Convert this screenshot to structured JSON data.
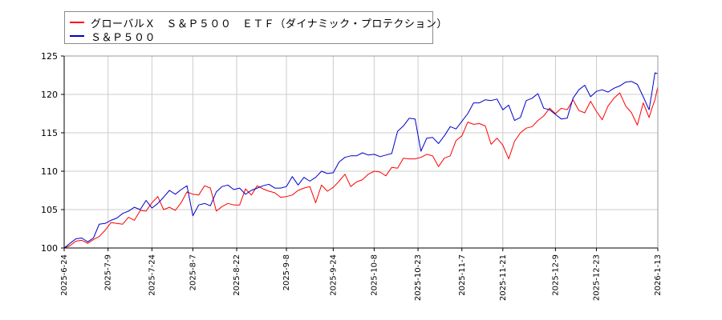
{
  "chart_data": {
    "type": "line",
    "title": "",
    "xlabel": "",
    "ylabel": "",
    "ylim": [
      100,
      125
    ],
    "yticks": [
      100,
      105,
      110,
      115,
      120,
      125
    ],
    "xlim": [
      "2025-06-24",
      "2026-01-13"
    ],
    "xtick_labels": [
      "2025-6-24",
      "2025-7-9",
      "2025-7-24",
      "2025-8-7",
      "2025-8-22",
      "2025-9-8",
      "2025-9-24",
      "2025-10-8",
      "2025-10-23",
      "2025-11-7",
      "2025-11-21",
      "2025-12-9",
      "2025-12-23",
      "2026-1-13"
    ],
    "grid": true,
    "legend_placement": "top-left",
    "colors": {
      "etf": "#ff0000",
      "index": "#0000cc",
      "grid": "#cccccc",
      "axis": "#000000"
    },
    "series": [
      {
        "name": "グローバルＸ　Ｓ＆Ｐ５００　ＥＴＦ（ダイナミック・プロテクション）",
        "color": "#ff0000",
        "points": [
          [
            "2025-06-24",
            100.0
          ],
          [
            "2025-06-26",
            100.3
          ],
          [
            "2025-06-28",
            100.9
          ],
          [
            "2025-06-30",
            101.0
          ],
          [
            "2025-07-02",
            100.6
          ],
          [
            "2025-07-04",
            101.1
          ],
          [
            "2025-07-06",
            101.5
          ],
          [
            "2025-07-08",
            102.3
          ],
          [
            "2025-07-10",
            103.3
          ],
          [
            "2025-07-12",
            103.2
          ],
          [
            "2025-07-14",
            103.1
          ],
          [
            "2025-07-16",
            104.0
          ],
          [
            "2025-07-18",
            103.6
          ],
          [
            "2025-07-20",
            104.9
          ],
          [
            "2025-07-22",
            104.8
          ],
          [
            "2025-07-24",
            105.9
          ],
          [
            "2025-07-26",
            106.7
          ],
          [
            "2025-07-28",
            105.0
          ],
          [
            "2025-07-30",
            105.3
          ],
          [
            "2025-08-01",
            104.9
          ],
          [
            "2025-08-03",
            105.9
          ],
          [
            "2025-08-05",
            107.3
          ],
          [
            "2025-08-07",
            107.0
          ],
          [
            "2025-08-09",
            106.9
          ],
          [
            "2025-08-11",
            108.1
          ],
          [
            "2025-08-13",
            107.8
          ],
          [
            "2025-08-15",
            104.8
          ],
          [
            "2025-08-17",
            105.4
          ],
          [
            "2025-08-19",
            105.8
          ],
          [
            "2025-08-21",
            105.6
          ],
          [
            "2025-08-23",
            105.6
          ],
          [
            "2025-08-25",
            107.7
          ],
          [
            "2025-08-27",
            106.9
          ],
          [
            "2025-08-29",
            108.1
          ],
          [
            "2025-08-31",
            107.7
          ],
          [
            "2025-09-02",
            107.4
          ],
          [
            "2025-09-04",
            107.2
          ],
          [
            "2025-09-06",
            106.6
          ],
          [
            "2025-09-08",
            106.7
          ],
          [
            "2025-09-10",
            106.9
          ],
          [
            "2025-09-12",
            107.5
          ],
          [
            "2025-09-14",
            107.8
          ],
          [
            "2025-09-16",
            108.0
          ],
          [
            "2025-09-18",
            105.9
          ],
          [
            "2025-09-20",
            108.2
          ],
          [
            "2025-09-22",
            107.4
          ],
          [
            "2025-09-24",
            107.9
          ],
          [
            "2025-09-26",
            108.7
          ],
          [
            "2025-09-28",
            109.6
          ],
          [
            "2025-09-30",
            108.0
          ],
          [
            "2025-10-02",
            108.6
          ],
          [
            "2025-10-04",
            108.9
          ],
          [
            "2025-10-06",
            109.6
          ],
          [
            "2025-10-08",
            110.0
          ],
          [
            "2025-10-10",
            109.9
          ],
          [
            "2025-10-12",
            109.4
          ],
          [
            "2025-10-14",
            110.5
          ],
          [
            "2025-10-16",
            110.4
          ],
          [
            "2025-10-18",
            111.7
          ],
          [
            "2025-10-20",
            111.6
          ],
          [
            "2025-10-22",
            111.6
          ],
          [
            "2025-10-24",
            111.8
          ],
          [
            "2025-10-26",
            112.2
          ],
          [
            "2025-10-28",
            112.0
          ],
          [
            "2025-10-30",
            110.6
          ],
          [
            "2025-11-01",
            111.7
          ],
          [
            "2025-11-03",
            112.0
          ],
          [
            "2025-11-05",
            114.0
          ],
          [
            "2025-11-07",
            114.6
          ],
          [
            "2025-11-09",
            116.4
          ],
          [
            "2025-11-11",
            116.1
          ],
          [
            "2025-11-13",
            116.2
          ],
          [
            "2025-11-15",
            115.9
          ],
          [
            "2025-11-17",
            113.5
          ],
          [
            "2025-11-19",
            114.3
          ],
          [
            "2025-11-21",
            113.4
          ],
          [
            "2025-11-23",
            111.6
          ],
          [
            "2025-11-25",
            113.9
          ],
          [
            "2025-11-27",
            115.0
          ],
          [
            "2025-11-29",
            115.6
          ],
          [
            "2025-12-01",
            115.8
          ],
          [
            "2025-12-03",
            116.6
          ],
          [
            "2025-12-05",
            117.2
          ],
          [
            "2025-12-07",
            118.2
          ],
          [
            "2025-12-09",
            117.5
          ],
          [
            "2025-12-11",
            118.2
          ],
          [
            "2025-12-13",
            118.0
          ],
          [
            "2025-12-15",
            119.3
          ],
          [
            "2025-12-17",
            117.9
          ],
          [
            "2025-12-19",
            117.6
          ],
          [
            "2025-12-21",
            119.1
          ],
          [
            "2025-12-23",
            117.8
          ],
          [
            "2025-12-25",
            116.7
          ],
          [
            "2025-12-27",
            118.5
          ],
          [
            "2025-12-29",
            119.5
          ],
          [
            "2025-12-31",
            120.2
          ],
          [
            "2026-01-02",
            118.5
          ],
          [
            "2026-01-04",
            117.6
          ],
          [
            "2026-01-06",
            116.0
          ],
          [
            "2026-01-08",
            118.9
          ],
          [
            "2026-01-10",
            117.0
          ],
          [
            "2026-01-11",
            118.2
          ],
          [
            "2026-01-12",
            119.3
          ],
          [
            "2026-01-13",
            121.0
          ]
        ]
      },
      {
        "name": "Ｓ＆Ｐ５００",
        "color": "#0000cc",
        "points": [
          [
            "2025-06-24",
            100.0
          ],
          [
            "2025-06-26",
            100.6
          ],
          [
            "2025-06-28",
            101.2
          ],
          [
            "2025-06-30",
            101.3
          ],
          [
            "2025-07-02",
            100.8
          ],
          [
            "2025-07-04",
            101.3
          ],
          [
            "2025-07-06",
            103.1
          ],
          [
            "2025-07-08",
            103.2
          ],
          [
            "2025-07-10",
            103.6
          ],
          [
            "2025-07-12",
            103.9
          ],
          [
            "2025-07-14",
            104.5
          ],
          [
            "2025-07-16",
            104.8
          ],
          [
            "2025-07-18",
            105.3
          ],
          [
            "2025-07-20",
            105.0
          ],
          [
            "2025-07-22",
            106.2
          ],
          [
            "2025-07-24",
            105.2
          ],
          [
            "2025-07-26",
            105.8
          ],
          [
            "2025-07-28",
            106.6
          ],
          [
            "2025-07-30",
            107.5
          ],
          [
            "2025-08-01",
            107.0
          ],
          [
            "2025-08-03",
            107.6
          ],
          [
            "2025-08-05",
            108.1
          ],
          [
            "2025-08-07",
            104.2
          ],
          [
            "2025-08-09",
            105.6
          ],
          [
            "2025-08-11",
            105.8
          ],
          [
            "2025-08-13",
            105.5
          ],
          [
            "2025-08-15",
            107.3
          ],
          [
            "2025-08-17",
            108.0
          ],
          [
            "2025-08-19",
            108.2
          ],
          [
            "2025-08-21",
            107.6
          ],
          [
            "2025-08-23",
            107.8
          ],
          [
            "2025-08-25",
            107.0
          ],
          [
            "2025-08-27",
            107.5
          ],
          [
            "2025-08-29",
            107.8
          ],
          [
            "2025-08-31",
            108.1
          ],
          [
            "2025-09-02",
            108.3
          ],
          [
            "2025-09-04",
            107.8
          ],
          [
            "2025-09-06",
            107.8
          ],
          [
            "2025-09-08",
            108.0
          ],
          [
            "2025-09-10",
            109.3
          ],
          [
            "2025-09-12",
            108.2
          ],
          [
            "2025-09-14",
            109.2
          ],
          [
            "2025-09-16",
            108.7
          ],
          [
            "2025-09-18",
            109.2
          ],
          [
            "2025-09-20",
            110.0
          ],
          [
            "2025-09-22",
            109.7
          ],
          [
            "2025-09-24",
            109.8
          ],
          [
            "2025-09-26",
            111.2
          ],
          [
            "2025-09-28",
            111.8
          ],
          [
            "2025-09-30",
            112.0
          ],
          [
            "2025-10-02",
            112.0
          ],
          [
            "2025-10-04",
            112.4
          ],
          [
            "2025-10-06",
            112.1
          ],
          [
            "2025-10-08",
            112.2
          ],
          [
            "2025-10-10",
            111.9
          ],
          [
            "2025-10-12",
            112.1
          ],
          [
            "2025-10-14",
            112.3
          ],
          [
            "2025-10-16",
            115.2
          ],
          [
            "2025-10-18",
            115.9
          ],
          [
            "2025-10-20",
            116.9
          ],
          [
            "2025-10-22",
            116.8
          ],
          [
            "2025-10-24",
            112.6
          ],
          [
            "2025-10-26",
            114.3
          ],
          [
            "2025-10-28",
            114.4
          ],
          [
            "2025-10-30",
            113.6
          ],
          [
            "2025-11-01",
            114.6
          ],
          [
            "2025-11-03",
            115.8
          ],
          [
            "2025-11-05",
            115.5
          ],
          [
            "2025-11-07",
            116.5
          ],
          [
            "2025-11-09",
            117.5
          ],
          [
            "2025-11-11",
            118.9
          ],
          [
            "2025-11-13",
            118.9
          ],
          [
            "2025-11-15",
            119.3
          ],
          [
            "2025-11-17",
            119.2
          ],
          [
            "2025-11-19",
            119.4
          ],
          [
            "2025-11-21",
            118.0
          ],
          [
            "2025-11-23",
            118.6
          ],
          [
            "2025-11-25",
            116.6
          ],
          [
            "2025-11-27",
            117.0
          ],
          [
            "2025-11-29",
            119.2
          ],
          [
            "2025-12-01",
            119.5
          ],
          [
            "2025-12-03",
            120.1
          ],
          [
            "2025-12-05",
            118.2
          ],
          [
            "2025-12-07",
            118.0
          ],
          [
            "2025-12-09",
            117.4
          ],
          [
            "2025-12-11",
            116.8
          ],
          [
            "2025-12-13",
            116.9
          ],
          [
            "2025-12-15",
            119.5
          ],
          [
            "2025-12-17",
            120.6
          ],
          [
            "2025-12-19",
            121.2
          ],
          [
            "2025-12-21",
            119.7
          ],
          [
            "2025-12-23",
            120.4
          ],
          [
            "2025-12-25",
            120.6
          ],
          [
            "2025-12-27",
            120.3
          ],
          [
            "2025-12-29",
            120.8
          ],
          [
            "2025-12-31",
            121.1
          ],
          [
            "2026-01-02",
            121.6
          ],
          [
            "2026-01-04",
            121.7
          ],
          [
            "2026-01-06",
            121.3
          ],
          [
            "2026-01-08",
            119.7
          ],
          [
            "2026-01-10",
            118.0
          ],
          [
            "2026-01-11",
            120.3
          ],
          [
            "2026-01-12",
            122.8
          ],
          [
            "2026-01-13",
            122.7
          ]
        ]
      }
    ]
  }
}
